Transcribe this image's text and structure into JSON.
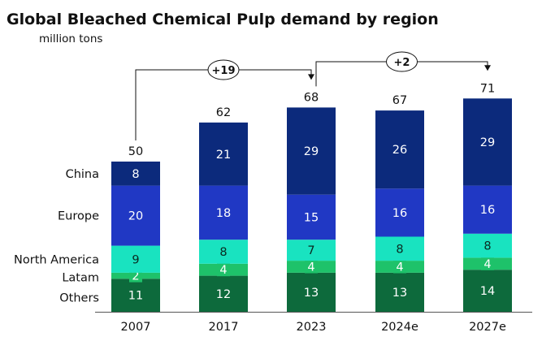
{
  "chart_data": {
    "type": "bar",
    "stacked": true,
    "title": "Global Bleached Chemical Pulp demand by region",
    "subtitle": "million tons",
    "categories": [
      "2007",
      "2017",
      "2023",
      "2024e",
      "2027e"
    ],
    "series": [
      {
        "name": "Others",
        "color": "#0d6a3c",
        "label_color": "#ffffff",
        "values": [
          11,
          12,
          13,
          13,
          14
        ]
      },
      {
        "name": "Latam",
        "color": "#1ec26a",
        "label_color": "#ffffff",
        "values": [
          2,
          4,
          4,
          4,
          4
        ]
      },
      {
        "name": "North America",
        "color": "#19e3c0",
        "label_color": "#0a2a20",
        "values": [
          9,
          8,
          7,
          8,
          8
        ]
      },
      {
        "name": "Europe",
        "color": "#2038c4",
        "label_color": "#ffffff",
        "values": [
          20,
          18,
          15,
          16,
          16
        ]
      },
      {
        "name": "China",
        "color": "#0c2a7c",
        "label_color": "#ffffff",
        "values": [
          8,
          21,
          29,
          26,
          29
        ]
      }
    ],
    "totals": [
      50,
      62,
      68,
      67,
      71
    ],
    "annotations": [
      {
        "from": "2007",
        "to": "2023",
        "label": "+19"
      },
      {
        "from": "2023",
        "to": "2027e",
        "label": "+2"
      }
    ]
  }
}
